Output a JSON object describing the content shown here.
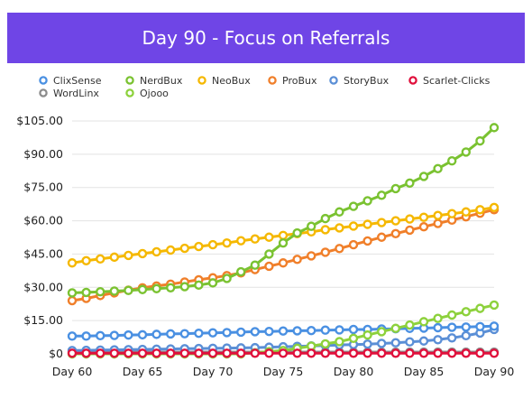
{
  "title": "Day 90 - Focus on Referrals",
  "chart_data": {
    "type": "line",
    "title": "Day 90 - Focus on Referrals",
    "xlabel": "",
    "ylabel": "",
    "x_range": [
      60,
      90
    ],
    "x_ticks": [
      "Day 60",
      "Day 65",
      "Day 70",
      "Day 75",
      "Day 80",
      "Day 85",
      "Day 90"
    ],
    "ylim": [
      0,
      105
    ],
    "y_ticks": [
      "$0",
      "$15.00",
      "$30.00",
      "$45.00",
      "$60.00",
      "$75.00",
      "$90.00",
      "$105.00"
    ],
    "y_tick_values": [
      0,
      15,
      30,
      45,
      60,
      75,
      90,
      105
    ],
    "grid": "horizontal",
    "legend_position": "top-left",
    "x": [
      60,
      61,
      62,
      63,
      64,
      65,
      66,
      67,
      68,
      69,
      70,
      71,
      72,
      73,
      74,
      75,
      76,
      77,
      78,
      79,
      80,
      81,
      82,
      83,
      84,
      85,
      86,
      87,
      88,
      89,
      90
    ],
    "series": [
      {
        "name": "ClixSense",
        "color": "#4a90e2",
        "values": [
          8,
          8,
          8.2,
          8.3,
          8.5,
          8.6,
          8.8,
          9,
          9.1,
          9.3,
          9.5,
          9.6,
          9.8,
          10,
          10.1,
          10.3,
          10.4,
          10.5,
          10.7,
          10.8,
          11,
          11,
          11.2,
          11.3,
          11.5,
          11.6,
          11.8,
          12,
          12.1,
          12.3,
          12.5
        ]
      },
      {
        "name": "NerdBux",
        "color": "#7ac231",
        "values": [
          27.5,
          27.7,
          28,
          28.3,
          28.6,
          29,
          29.4,
          29.8,
          30.3,
          31,
          32,
          34,
          37,
          40,
          45,
          50,
          54.5,
          57.5,
          61,
          64,
          66.5,
          69,
          71.5,
          74.5,
          77,
          80,
          83.5,
          87,
          91,
          96,
          102
        ]
      },
      {
        "name": "NeoBux",
        "color": "#f5b800",
        "values": [
          41,
          42,
          42.8,
          43.6,
          44.4,
          45.2,
          46,
          46.8,
          47.6,
          48.4,
          49.2,
          50,
          51,
          51.8,
          52.6,
          53.4,
          54.2,
          55,
          56,
          56.8,
          57.6,
          58.4,
          59.2,
          60,
          60.8,
          61.6,
          62.4,
          63.2,
          64,
          65,
          66
        ]
      },
      {
        "name": "ProBux",
        "color": "#f07f2a",
        "values": [
          24,
          25,
          26.3,
          27.5,
          28.7,
          29.8,
          30.6,
          31.4,
          32.4,
          33.4,
          34.3,
          35.3,
          36.5,
          38,
          39.5,
          41,
          42.6,
          44.2,
          45.8,
          47.5,
          49.2,
          50.9,
          52.6,
          54.2,
          55.8,
          57.3,
          58.8,
          60.3,
          61.8,
          63.4,
          65
        ]
      },
      {
        "name": "StoryBux",
        "color": "#5b8fd6",
        "values": [
          1.5,
          1.6,
          1.7,
          1.8,
          1.9,
          2,
          2.1,
          2.2,
          2.3,
          2.4,
          2.5,
          2.6,
          2.7,
          2.8,
          3,
          3.2,
          3.4,
          3.6,
          3.8,
          4,
          4.2,
          4.4,
          4.7,
          5,
          5.4,
          5.8,
          6.4,
          7.2,
          8.2,
          9.4,
          11
        ]
      },
      {
        "name": "Scarlet-Clicks",
        "color": "#e0103c",
        "values": [
          0.3,
          0.3,
          0.3,
          0.3,
          0.3,
          0.3,
          0.3,
          0.3,
          0.3,
          0.3,
          0.3,
          0.3,
          0.3,
          0.3,
          0.3,
          0.3,
          0.3,
          0.3,
          0.3,
          0.3,
          0.3,
          0.3,
          0.3,
          0.3,
          0.3,
          0.3,
          0.3,
          0.3,
          0.3,
          0.3,
          0.3
        ]
      },
      {
        "name": "WordLinx",
        "color": "#8c8c8c",
        "values": [
          0.8,
          0.8,
          0.8,
          0.8,
          0.8,
          0.8,
          0.8,
          0.8,
          0.8,
          0.8,
          0.8,
          0.8,
          0.8,
          0.8,
          0.8,
          0.8,
          0.8,
          0.8,
          0.8,
          0.8,
          0.8,
          0.8,
          0.8,
          0.8,
          0.8,
          0.8,
          0.8,
          0.8,
          0.8,
          0.8,
          0.8
        ]
      },
      {
        "name": "Ojooo",
        "color": "#8dd13c",
        "values": [
          0,
          0,
          0,
          0,
          0,
          0,
          0,
          0,
          0,
          0,
          0,
          0,
          0,
          0.5,
          1,
          1.5,
          2.5,
          3.5,
          4.5,
          5.5,
          7,
          8.5,
          10,
          11.5,
          13,
          14.5,
          16,
          17.5,
          19,
          20.5,
          22
        ]
      }
    ]
  }
}
